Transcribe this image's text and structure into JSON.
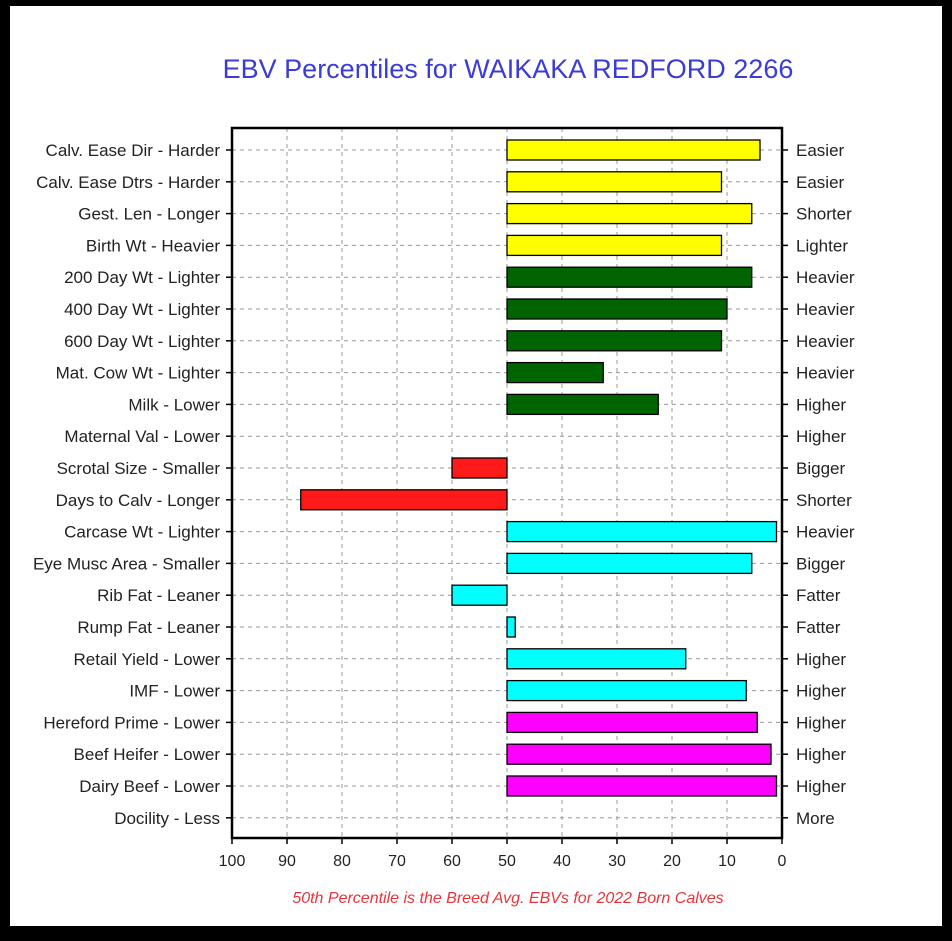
{
  "chart_data": {
    "type": "bar",
    "orientation": "horizontal",
    "title": "EBV Percentiles for WAIKAKA REDFORD 2266",
    "note": "50th Percentile is the Breed Avg. EBVs for 2022 Born Calves",
    "xlim": [
      100,
      0
    ],
    "baseline": 50,
    "x_ticks": [
      100,
      90,
      80,
      70,
      60,
      50,
      40,
      30,
      20,
      10,
      0
    ],
    "grid": true,
    "colors": {
      "yellow": "#ffff00",
      "green": "#006400",
      "red": "#ff1a1a",
      "cyan": "#00ffff",
      "magenta": "#ff00ff"
    },
    "rows": [
      {
        "left": "Calv. Ease Dir - Harder",
        "right": "Easier",
        "value": 4,
        "color": "yellow"
      },
      {
        "left": "Calv. Ease Dtrs - Harder",
        "right": "Easier",
        "value": 11,
        "color": "yellow"
      },
      {
        "left": "Gest. Len - Longer",
        "right": "Shorter",
        "value": 5.5,
        "color": "yellow"
      },
      {
        "left": "Birth Wt - Heavier",
        "right": "Lighter",
        "value": 11,
        "color": "yellow"
      },
      {
        "left": "200 Day Wt - Lighter",
        "right": "Heavier",
        "value": 5.5,
        "color": "green"
      },
      {
        "left": "400 Day Wt - Lighter",
        "right": "Heavier",
        "value": 10,
        "color": "green"
      },
      {
        "left": "600 Day Wt - Lighter",
        "right": "Heavier",
        "value": 11,
        "color": "green"
      },
      {
        "left": "Mat. Cow Wt - Lighter",
        "right": "Heavier",
        "value": 32.5,
        "color": "green"
      },
      {
        "left": "Milk - Lower",
        "right": "Higher",
        "value": 22.5,
        "color": "green"
      },
      {
        "left": "Maternal Val - Lower",
        "right": "Higher",
        "value": null,
        "color": null
      },
      {
        "left": "Scrotal Size - Smaller",
        "right": "Bigger",
        "value": 60,
        "color": "red"
      },
      {
        "left": "Days to Calv - Longer",
        "right": "Shorter",
        "value": 87.5,
        "color": "red"
      },
      {
        "left": "Carcase Wt - Lighter",
        "right": "Heavier",
        "value": 1,
        "color": "cyan"
      },
      {
        "left": "Eye Musc Area - Smaller",
        "right": "Bigger",
        "value": 5.5,
        "color": "cyan"
      },
      {
        "left": "Rib Fat - Leaner",
        "right": "Fatter",
        "value": 60,
        "color": "cyan"
      },
      {
        "left": "Rump Fat - Leaner",
        "right": "Fatter",
        "value": 48.5,
        "color": "cyan"
      },
      {
        "left": "Retail Yield - Lower",
        "right": "Higher",
        "value": 17.5,
        "color": "cyan"
      },
      {
        "left": "IMF - Lower",
        "right": "Higher",
        "value": 6.5,
        "color": "cyan"
      },
      {
        "left": "Hereford Prime - Lower",
        "right": "Higher",
        "value": 4.5,
        "color": "magenta"
      },
      {
        "left": "Beef Heifer - Lower",
        "right": "Higher",
        "value": 2,
        "color": "magenta"
      },
      {
        "left": "Dairy Beef - Lower",
        "right": "Higher",
        "value": 1,
        "color": "magenta"
      },
      {
        "left": "Docility - Less",
        "right": "More",
        "value": null,
        "color": null
      }
    ]
  }
}
